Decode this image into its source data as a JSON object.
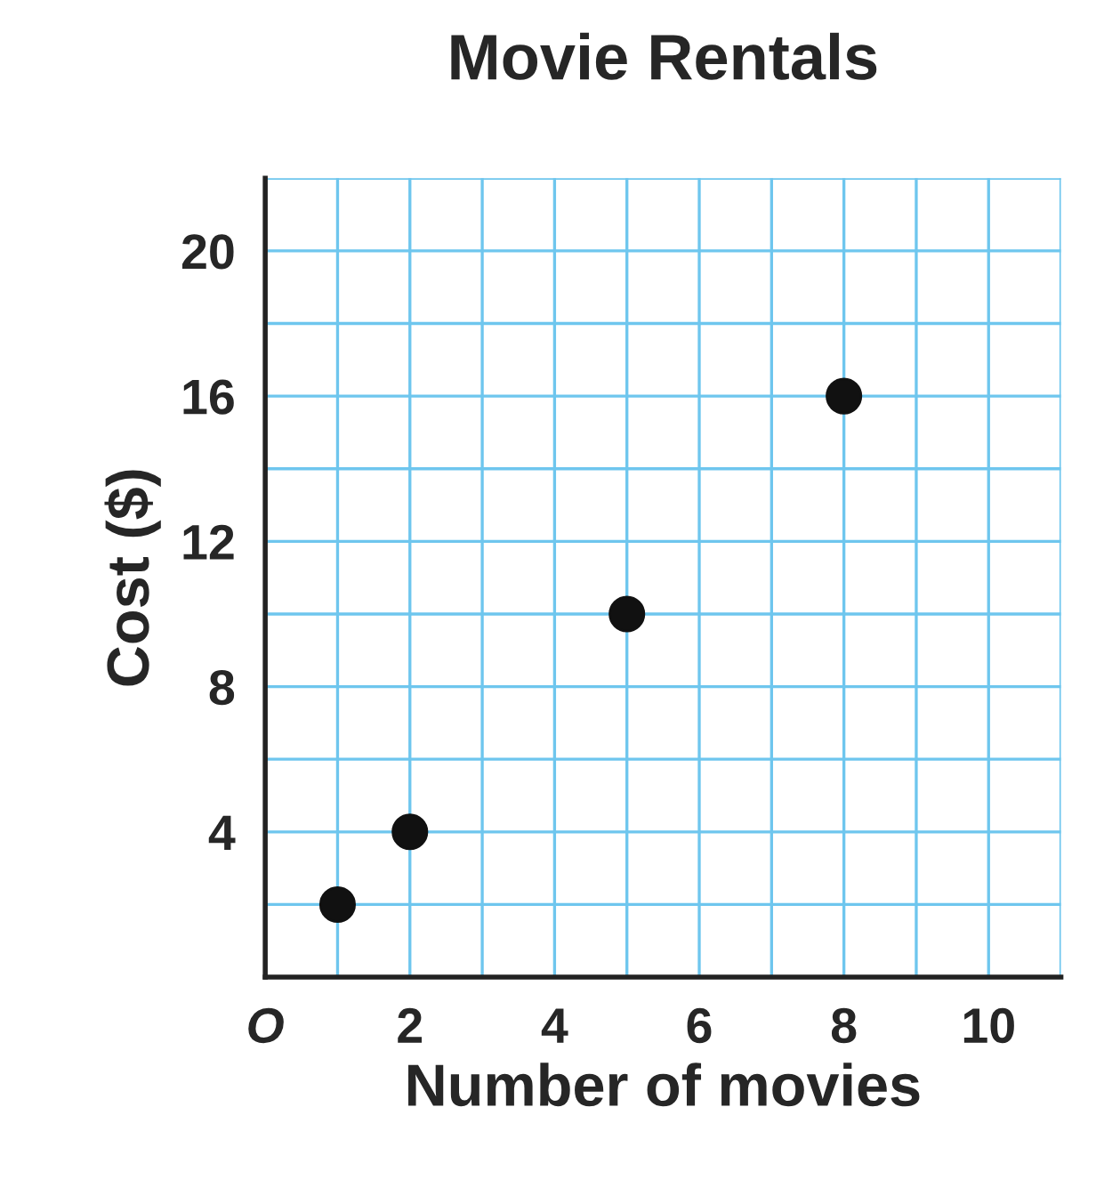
{
  "chart_data": {
    "type": "scatter",
    "title": "Movie Rentals",
    "xlabel": "Number of movies",
    "ylabel": "Cost ($)",
    "x": [
      1,
      2,
      5,
      8
    ],
    "series": [
      {
        "color": "#111111",
        "values": [
          2,
          4,
          10,
          16
        ]
      }
    ],
    "xlim": [
      0,
      11
    ],
    "ylim": [
      0,
      22
    ],
    "xticks": [
      {
        "value": 0,
        "label": "O"
      },
      {
        "value": 1,
        "label": null
      },
      2,
      {
        "value": 3,
        "label": null
      },
      4,
      {
        "value": 5,
        "label": null
      },
      6,
      {
        "value": 7,
        "label": null
      },
      8,
      {
        "value": 9,
        "label": null
      },
      10,
      {
        "value": 11,
        "label": null
      }
    ],
    "yticks": [
      {
        "value": 0,
        "label": null
      },
      {
        "value": 2,
        "label": null
      },
      4,
      {
        "value": 6,
        "label": null
      },
      8,
      {
        "value": 10,
        "label": null
      },
      12,
      {
        "value": 14,
        "label": null
      },
      16,
      {
        "value": 18,
        "label": null
      },
      20,
      {
        "value": 22,
        "label": null
      }
    ],
    "grid": true,
    "marker": "circle"
  }
}
